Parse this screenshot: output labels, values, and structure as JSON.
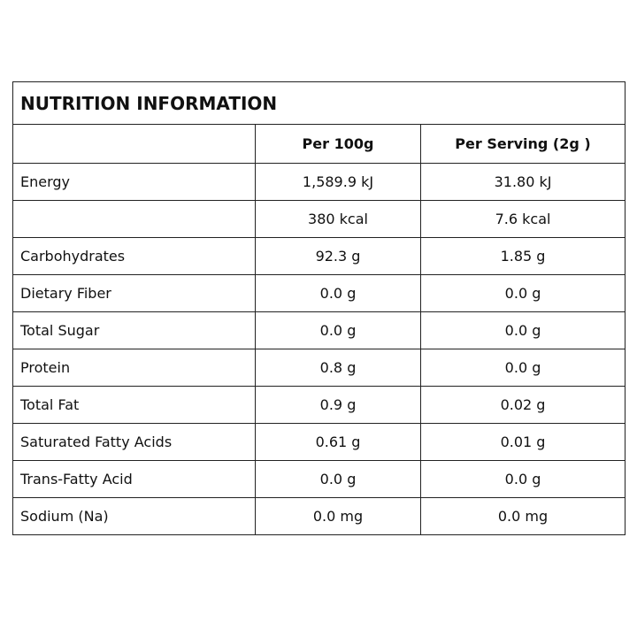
{
  "table": {
    "title": "NUTRITION INFORMATION",
    "header": [
      null,
      "Per 100g",
      "Per Serving (2g )"
    ],
    "rows": [
      [
        "Energy",
        "1,589.9 kJ",
        "31.80 kJ"
      ],
      [
        null,
        "380 kcal",
        "7.6 kcal"
      ],
      [
        "Carbohydrates",
        "92.3 g",
        "1.85 g"
      ],
      [
        "Dietary Fiber",
        "0.0 g",
        "0.0 g"
      ],
      [
        "Total Sugar",
        "0.0 g",
        "0.0 g"
      ],
      [
        "Protein",
        "0.8 g",
        "0.0 g"
      ],
      [
        "Total Fat",
        "0.9 g",
        "0.02 g"
      ],
      [
        "Saturated Fatty Acids",
        "0.61 g",
        "0.01 g"
      ],
      [
        "Trans-Fatty Acid",
        "0.0 g",
        "0.0 g"
      ],
      [
        "Sodium (Na)",
        "0.0 mg",
        "0.0 mg"
      ]
    ]
  }
}
